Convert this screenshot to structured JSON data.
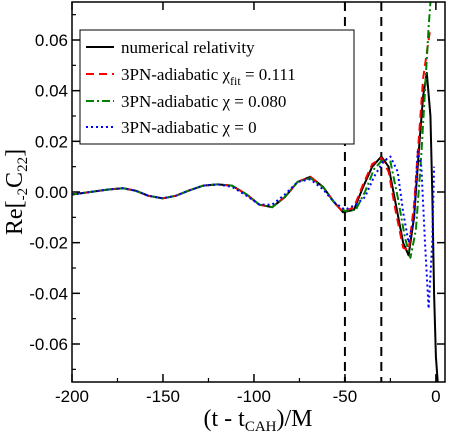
{
  "chart_data": {
    "type": "line",
    "title": "",
    "xlabel": {
      "main": "(t - t",
      "sub": "CAH",
      "tail": ")/M"
    },
    "ylabel": {
      "main": "Re[",
      "presub": "-2",
      "mid": "C",
      "sub": "22",
      "tail": "]"
    },
    "xlim": [
      -200,
      5
    ],
    "ylim": [
      -0.075,
      0.075
    ],
    "xticks": [
      -200,
      -150,
      -100,
      -50,
      0
    ],
    "xtick_labels": [
      "-200",
      "-150",
      "-100",
      "-50",
      "0"
    ],
    "yticks": [
      -0.06,
      -0.04,
      -0.02,
      0.0,
      0.02,
      0.04,
      0.06
    ],
    "ytick_labels": [
      "-0.06",
      "-0.04",
      "-0.02",
      "0.00",
      "0.02",
      "0.04",
      "0.06"
    ],
    "grid": false,
    "legend_position": "top-left",
    "vlines": [
      -50,
      -30
    ],
    "series": [
      {
        "name": "numerical relativity",
        "color": "#000000",
        "dash": "solid",
        "x": [
          -200,
          -190,
          -180,
          -172,
          -165,
          -158,
          -150,
          -143,
          -136,
          -128,
          -120,
          -112,
          -104,
          -97,
          -90,
          -83,
          -76,
          -69,
          -62,
          -56,
          -51,
          -45,
          -40,
          -35,
          -30,
          -26,
          -22,
          -18,
          -15,
          -12,
          -9,
          -7,
          -5,
          -3,
          -2,
          -1,
          0,
          1
        ],
        "y": [
          -0.001,
          0.0,
          0.001,
          0.0015,
          0.0005,
          -0.0015,
          -0.0025,
          -0.0015,
          0.0005,
          0.0025,
          0.003,
          0.0025,
          -0.001,
          -0.005,
          -0.006,
          -0.002,
          0.004,
          0.006,
          0.002,
          -0.004,
          -0.008,
          -0.007,
          0.002,
          0.01,
          0.014,
          0.01,
          -0.005,
          -0.02,
          -0.025,
          -0.01,
          0.02,
          0.038,
          0.047,
          0.03,
          0.0,
          -0.04,
          -0.065,
          -0.075
        ]
      },
      {
        "name": "3PN-adiabatic χfit = 0.111",
        "color": "#ff0000",
        "dash": "dashed",
        "x": [
          -200,
          -190,
          -180,
          -172,
          -165,
          -158,
          -150,
          -143,
          -136,
          -128,
          -120,
          -112,
          -104,
          -97,
          -90,
          -83,
          -76,
          -69,
          -62,
          -56,
          -51,
          -45,
          -40,
          -35,
          -30,
          -26,
          -22,
          -18,
          -15,
          -12,
          -9,
          -7,
          -5,
          -4,
          -3
        ],
        "y": [
          -0.001,
          0.0,
          0.001,
          0.0015,
          0.0005,
          -0.0015,
          -0.0025,
          -0.0015,
          0.0005,
          0.0025,
          0.003,
          0.0025,
          -0.001,
          -0.005,
          -0.006,
          -0.002,
          0.004,
          0.006,
          0.002,
          -0.004,
          -0.008,
          -0.006,
          0.003,
          0.011,
          0.0135,
          0.008,
          -0.008,
          -0.022,
          -0.023,
          -0.005,
          0.025,
          0.045,
          0.055,
          0.06,
          0.065
        ]
      },
      {
        "name": "3PN-adiabatic χ = 0.080",
        "color": "#008000",
        "dash": "dashdot",
        "x": [
          -200,
          -190,
          -180,
          -172,
          -165,
          -158,
          -150,
          -143,
          -136,
          -128,
          -120,
          -112,
          -104,
          -97,
          -90,
          -83,
          -76,
          -69,
          -62,
          -56,
          -50,
          -44,
          -39,
          -34,
          -29,
          -25,
          -21,
          -17,
          -14,
          -11,
          -8,
          -6,
          -4,
          -3
        ],
        "y": [
          -0.001,
          0.0,
          0.001,
          0.0015,
          0.0005,
          -0.0015,
          -0.0025,
          -0.0015,
          0.0005,
          0.0025,
          0.003,
          0.0025,
          -0.001,
          -0.005,
          -0.006,
          -0.002,
          0.004,
          0.0055,
          0.002,
          -0.004,
          -0.0075,
          -0.007,
          0.0,
          0.009,
          0.013,
          0.012,
          -0.002,
          -0.018,
          -0.026,
          -0.015,
          0.015,
          0.04,
          0.065,
          0.075
        ]
      },
      {
        "name": "3PN-adiabatic χ = 0",
        "color": "#0000ff",
        "dash": "dotted",
        "x": [
          -200,
          -190,
          -180,
          -172,
          -165,
          -158,
          -150,
          -143,
          -136,
          -128,
          -120,
          -112,
          -104,
          -97,
          -90,
          -83,
          -76,
          -69,
          -62,
          -56,
          -50,
          -44,
          -39,
          -34,
          -29,
          -25,
          -21,
          -18,
          -15,
          -12,
          -10,
          -8,
          -6,
          -4,
          -2,
          -1
        ],
        "y": [
          -0.001,
          0.0,
          0.001,
          0.0015,
          0.0005,
          -0.0015,
          -0.0025,
          -0.0015,
          0.0005,
          0.0025,
          0.003,
          0.002,
          -0.0015,
          -0.005,
          -0.005,
          -0.001,
          0.004,
          0.005,
          0.001,
          -0.004,
          -0.007,
          -0.005,
          -0.002,
          0.006,
          0.012,
          0.014,
          0.008,
          -0.008,
          -0.02,
          -0.01,
          0.016,
          0.01,
          -0.02,
          -0.046,
          -0.02,
          0.01
        ]
      }
    ]
  },
  "legend": {
    "items": [
      {
        "main": "numerical relativity",
        "sub": "",
        "tail": ""
      },
      {
        "main": "3PN-adiabatic χ",
        "sub": "fit",
        "tail": " = 0.111"
      },
      {
        "main": "3PN-adiabatic χ = 0.080",
        "sub": "",
        "tail": ""
      },
      {
        "main": "3PN-adiabatic χ = 0",
        "sub": "",
        "tail": ""
      }
    ]
  }
}
